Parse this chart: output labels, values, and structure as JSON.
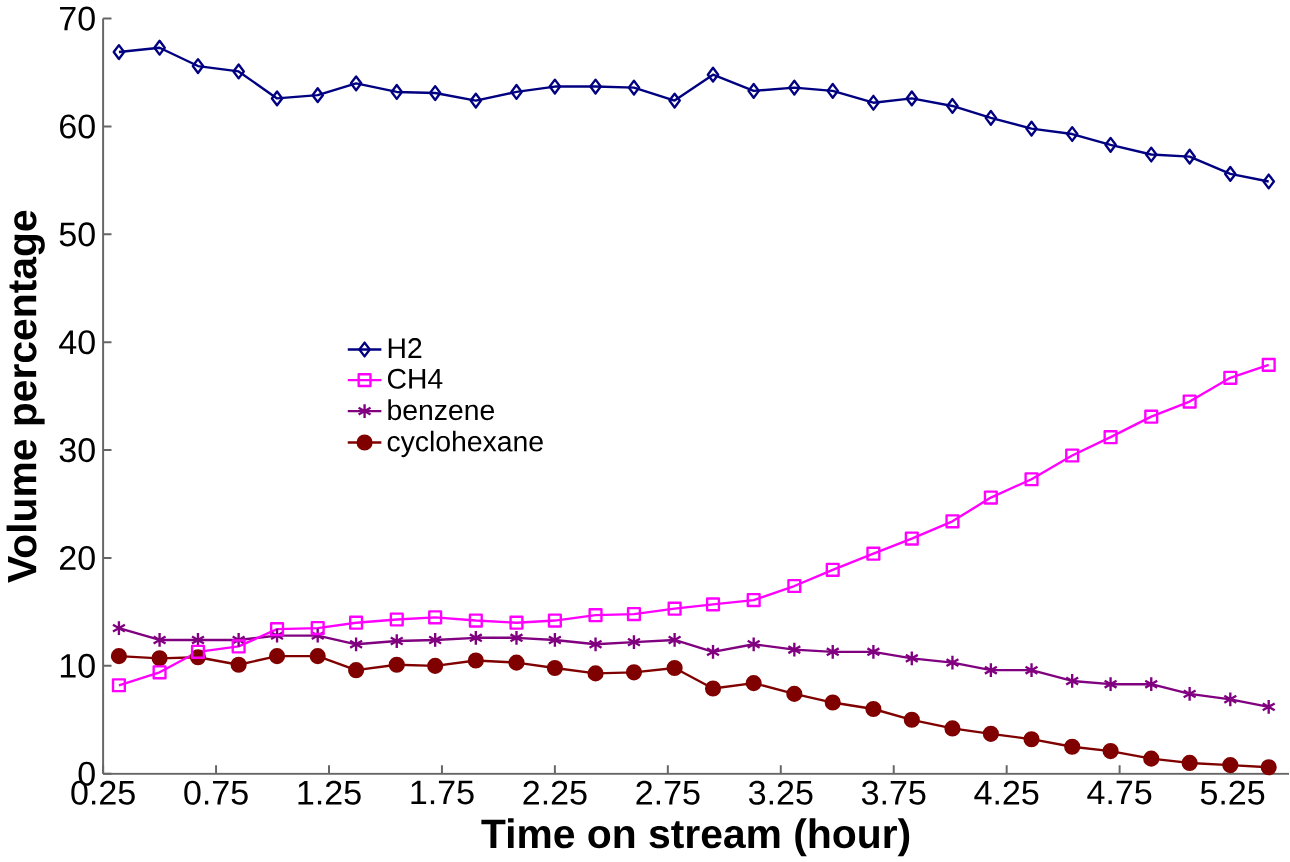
{
  "chart_data": {
    "type": "line",
    "xlabel": "Time on stream (hour)",
    "ylabel": "Volume percentage",
    "x": [
      0.32,
      0.5,
      0.67,
      0.85,
      1.02,
      1.2,
      1.37,
      1.55,
      1.72,
      1.9,
      2.08,
      2.25,
      2.43,
      2.6,
      2.78,
      2.95,
      3.13,
      3.31,
      3.48,
      3.66,
      3.83,
      4.01,
      4.18,
      4.36,
      4.54,
      4.71,
      4.89,
      5.06,
      5.24,
      5.41
    ],
    "series": [
      {
        "name": "H2",
        "color": "#000080",
        "marker": "diamond",
        "values": [
          66.9,
          67.3,
          65.6,
          65.1,
          62.6,
          62.9,
          64.0,
          63.2,
          63.1,
          62.4,
          63.2,
          63.7,
          63.7,
          63.6,
          62.4,
          64.8,
          63.3,
          63.6,
          63.3,
          62.2,
          62.6,
          61.9,
          60.8,
          59.8,
          59.3,
          58.3,
          57.4,
          57.2,
          55.6,
          54.9
        ]
      },
      {
        "name": "CH4",
        "color": "#ff00ff",
        "marker": "square",
        "values": [
          8.2,
          9.4,
          11.3,
          11.8,
          13.4,
          13.5,
          14.0,
          14.3,
          14.5,
          14.2,
          14.0,
          14.2,
          14.7,
          14.8,
          15.3,
          15.7,
          16.1,
          17.4,
          18.9,
          20.4,
          21.8,
          23.4,
          25.6,
          27.3,
          29.5,
          31.2,
          33.1,
          34.5,
          36.7,
          37.9
        ]
      },
      {
        "name": "benzene",
        "color": "#800080",
        "marker": "cross",
        "values": [
          13.5,
          12.4,
          12.4,
          12.4,
          12.8,
          12.8,
          12.0,
          12.3,
          12.4,
          12.6,
          12.6,
          12.4,
          12.0,
          12.2,
          12.4,
          11.3,
          12.0,
          11.5,
          11.3,
          11.3,
          10.7,
          10.3,
          9.6,
          9.6,
          8.6,
          8.3,
          8.3,
          7.4,
          6.9,
          6.2
        ]
      },
      {
        "name": "cyclohexane",
        "color": "#800000",
        "marker": "circle",
        "values": [
          10.9,
          10.7,
          10.8,
          10.1,
          10.9,
          10.9,
          9.6,
          10.1,
          10.0,
          10.5,
          10.3,
          9.8,
          9.3,
          9.4,
          9.8,
          7.9,
          8.4,
          7.4,
          6.6,
          6.0,
          5.0,
          4.2,
          3.7,
          3.2,
          2.5,
          2.1,
          1.4,
          1.0,
          0.8,
          0.6
        ]
      }
    ],
    "xlim": [
      0.25,
      5.5
    ],
    "ylim": [
      0,
      70
    ],
    "xticks": [
      0.25,
      0.75,
      1.25,
      1.75,
      2.25,
      2.75,
      3.25,
      3.75,
      4.25,
      4.75,
      5.25
    ],
    "yticks": [
      0,
      10,
      20,
      30,
      40,
      50,
      60,
      70
    ],
    "legend": "left",
    "grid": false,
    "line_style": "solid"
  }
}
